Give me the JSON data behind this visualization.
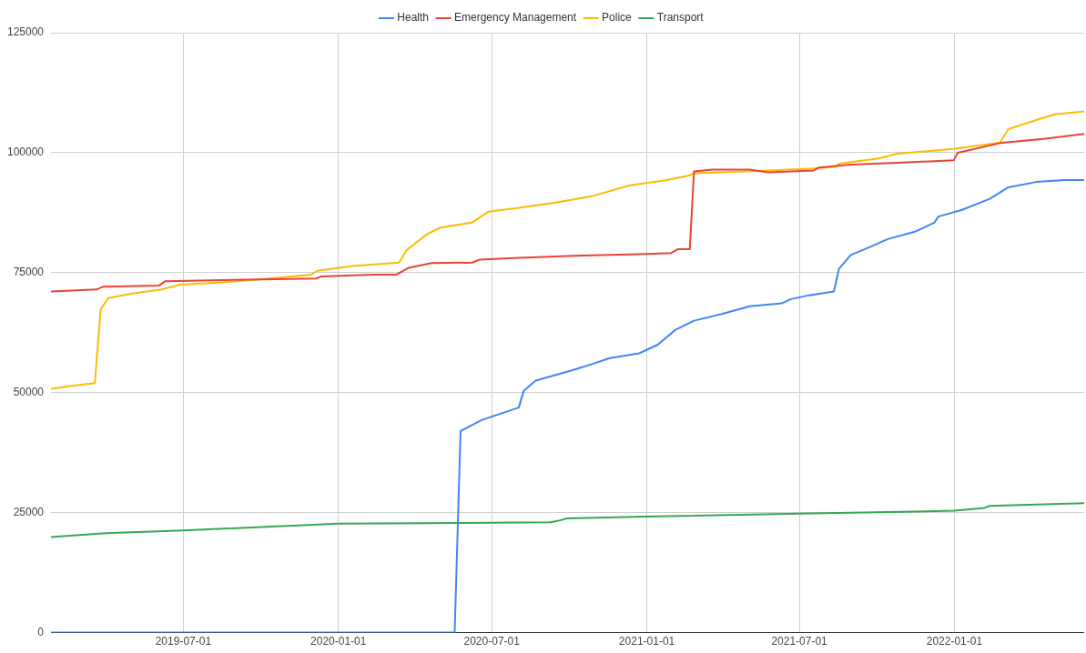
{
  "chart_data": {
    "type": "line",
    "legend": "top",
    "grid": true,
    "marker": "none",
    "line_style": "solid",
    "xlim": [
      "2019-01-25",
      "2022-06-04"
    ],
    "xticks": [
      "2019-07-01",
      "2020-01-01",
      "2020-07-01",
      "2021-01-01",
      "2021-07-01",
      "2022-01-01"
    ],
    "ylim": [
      0,
      125000
    ],
    "yticks": [
      0,
      25000,
      50000,
      75000,
      100000,
      125000
    ],
    "series": [
      {
        "name": "Health",
        "color": "#4285f4",
        "x": [
          "2019-01-25",
          "2020-05-18",
          "2020-05-25",
          "2020-06-19",
          "2020-08-02",
          "2020-08-08",
          "2020-08-22",
          "2020-10-05",
          "2020-10-27",
          "2020-11-18",
          "2020-12-23",
          "2021-01-14",
          "2021-02-04",
          "2021-02-26",
          "2021-03-31",
          "2021-05-03",
          "2021-06-10",
          "2021-06-21",
          "2021-07-13",
          "2021-08-11",
          "2021-08-17",
          "2021-08-31",
          "2021-09-22",
          "2021-10-14",
          "2021-11-16",
          "2021-12-08",
          "2021-12-13",
          "2022-01-10",
          "2022-02-12",
          "2022-03-06",
          "2022-04-08",
          "2022-05-11",
          "2022-06-04"
        ],
        "values": [
          0,
          0,
          42000,
          44300,
          46900,
          50400,
          52500,
          54700,
          55900,
          57200,
          58200,
          60000,
          63100,
          65000,
          66400,
          68000,
          68600,
          69500,
          70300,
          71100,
          75800,
          78700,
          80300,
          82000,
          83600,
          85400,
          86700,
          88100,
          90400,
          92800,
          93900,
          94300,
          94300
        ]
      },
      {
        "name": "Emergency Management",
        "color": "#ea4335",
        "x": [
          "2019-01-25",
          "2019-03-20",
          "2019-03-28",
          "2019-06-02",
          "2019-06-09",
          "2019-09-30",
          "2019-12-06",
          "2019-12-11",
          "2020-02-10",
          "2020-03-10",
          "2020-03-24",
          "2020-04-21",
          "2020-06-08",
          "2020-06-16",
          "2020-08-02",
          "2020-10-07",
          "2021-01-01",
          "2021-01-30",
          "2021-02-07",
          "2021-02-21",
          "2021-02-26",
          "2021-03-20",
          "2021-05-03",
          "2021-05-25",
          "2021-07-18",
          "2021-07-24",
          "2021-08-31",
          "2021-10-25",
          "2021-12-31",
          "2022-01-05",
          "2022-02-24",
          "2022-04-19",
          "2022-06-04"
        ],
        "values": [
          71100,
          71500,
          72100,
          72300,
          73200,
          73600,
          73800,
          74200,
          74600,
          74600,
          76000,
          77000,
          77100,
          77700,
          78100,
          78500,
          78900,
          79100,
          79900,
          79900,
          96100,
          96500,
          96500,
          95900,
          96300,
          96900,
          97500,
          97900,
          98400,
          100000,
          102000,
          102900,
          103900
        ]
      },
      {
        "name": "Police",
        "color": "#fbbc04",
        "x": [
          "2019-01-25",
          "2019-02-27",
          "2019-03-18",
          "2019-03-25",
          "2019-04-03",
          "2019-05-03",
          "2019-06-05",
          "2019-06-27",
          "2019-08-17",
          "2019-09-29",
          "2019-11-30",
          "2019-12-07",
          "2020-01-18",
          "2020-03-13",
          "2020-03-22",
          "2020-04-15",
          "2020-05-01",
          "2020-05-23",
          "2020-06-08",
          "2020-06-27",
          "2020-08-02",
          "2020-09-15",
          "2020-10-29",
          "2020-12-12",
          "2021-01-25",
          "2021-02-21",
          "2021-02-26",
          "2021-05-25",
          "2021-07-18",
          "2021-08-14",
          "2021-08-17",
          "2021-10-03",
          "2021-10-25",
          "2021-12-31",
          "2022-02-24",
          "2022-03-06",
          "2022-04-08",
          "2022-04-30",
          "2022-06-04"
        ],
        "values": [
          50800,
          51600,
          52000,
          67400,
          69700,
          70700,
          71500,
          72500,
          73000,
          73600,
          74600,
          75400,
          76400,
          77100,
          79700,
          83000,
          84400,
          85000,
          85500,
          87700,
          88500,
          89600,
          91000,
          93200,
          94300,
          95300,
          95700,
          96300,
          96700,
          97100,
          97700,
          98800,
          99800,
          100800,
          102100,
          104900,
          106800,
          108000,
          108600
        ]
      },
      {
        "name": "Transport",
        "color": "#34a853",
        "x": [
          "2019-01-25",
          "2019-03-31",
          "2019-07-01",
          "2020-01-01",
          "2020-07-01",
          "2020-09-09",
          "2020-09-20",
          "2020-09-28",
          "2021-01-01",
          "2021-07-01",
          "2022-01-01",
          "2022-02-06",
          "2022-02-12",
          "2022-06-04"
        ],
        "values": [
          19900,
          20700,
          21300,
          22700,
          22900,
          23000,
          23400,
          23800,
          24200,
          24800,
          25400,
          26000,
          26400,
          27000
        ]
      }
    ]
  }
}
